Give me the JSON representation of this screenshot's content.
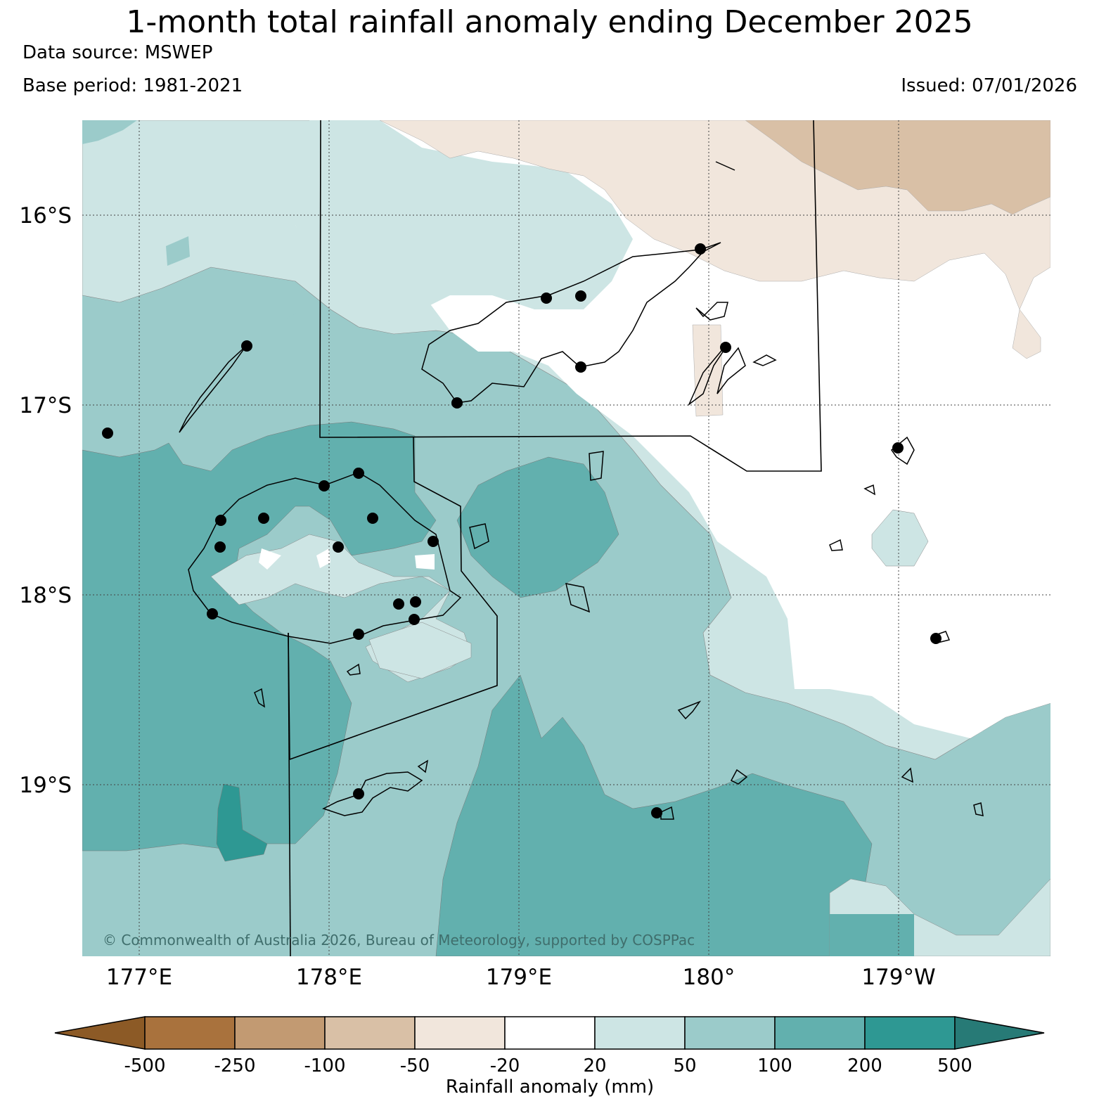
{
  "header": {
    "title": "1-month total rainfall anomaly ending December 2025",
    "data_source": "Data source: MSWEP",
    "base_period": "Base period: 1981-2021",
    "issued": "Issued: 07/01/2026"
  },
  "map": {
    "lat_labels": [
      "16°S",
      "17°S",
      "18°S",
      "19°S"
    ],
    "lon_labels": [
      "177°E",
      "178°E",
      "179°E",
      "180°",
      "179°W"
    ],
    "copyright": "© Commonwealth of Australia 2026, Bureau of Meteorology, supported by COSPPac"
  },
  "colorbar": {
    "title": "Rainfall anomaly (mm)",
    "labels": [
      "-500",
      "-250",
      "-100",
      "-50",
      "-20",
      "20",
      "50",
      "100",
      "200",
      "500"
    ],
    "colors": [
      "#8c5a26",
      "#a9723d",
      "#c29a72",
      "#d9c0a6",
      "#f1e6dc",
      "#ffffff",
      "#cde5e4",
      "#9bcbca",
      "#62b0ae",
      "#2e9893",
      "#277a76"
    ]
  },
  "palette": {
    "c20": "#cde5e4",
    "c50": "#9bcbca",
    "c100": "#62b0ae",
    "c200": "#2e9893",
    "n20": "#f1e6dc",
    "n50": "#d9c0a6"
  }
}
